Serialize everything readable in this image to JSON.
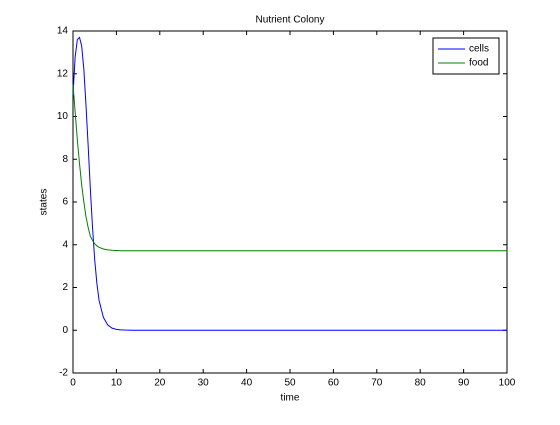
{
  "chart_data": {
    "type": "line",
    "title": "Nutrient Colony",
    "x_label": "time",
    "y_label": "states",
    "x": [
      0,
      0.5,
      1,
      1.5,
      2,
      2.5,
      3,
      3.5,
      4,
      4.5,
      5,
      5.5,
      6,
      7,
      8,
      9,
      10,
      11,
      12,
      14,
      20,
      100
    ],
    "series": [
      {
        "name": "cells",
        "color": "#0000ff",
        "values": [
          11,
          12.8,
          13.6,
          13.7,
          13.3,
          12.2,
          10.5,
          8.6,
          6.6,
          4.8,
          3.3,
          2.2,
          1.4,
          0.6,
          0.25,
          0.1,
          0.04,
          0.02,
          0.01,
          0,
          0,
          0
        ]
      },
      {
        "name": "food",
        "color": "#008000",
        "values": [
          11.5,
          10.2,
          8.9,
          7.8,
          6.8,
          6.0,
          5.3,
          4.8,
          4.4,
          4.2,
          4.05,
          3.95,
          3.88,
          3.8,
          3.76,
          3.74,
          3.73,
          3.72,
          3.72,
          3.72,
          3.72,
          3.72
        ]
      }
    ],
    "xlim": [
      0,
      100
    ],
    "xticks": [
      0,
      10,
      20,
      30,
      40,
      50,
      60,
      70,
      80,
      90,
      100
    ],
    "ylim": [
      -2,
      14
    ],
    "yticks": [
      -2,
      0,
      2,
      4,
      6,
      8,
      10,
      12,
      14
    ],
    "grid": false,
    "legend": "upper right"
  }
}
